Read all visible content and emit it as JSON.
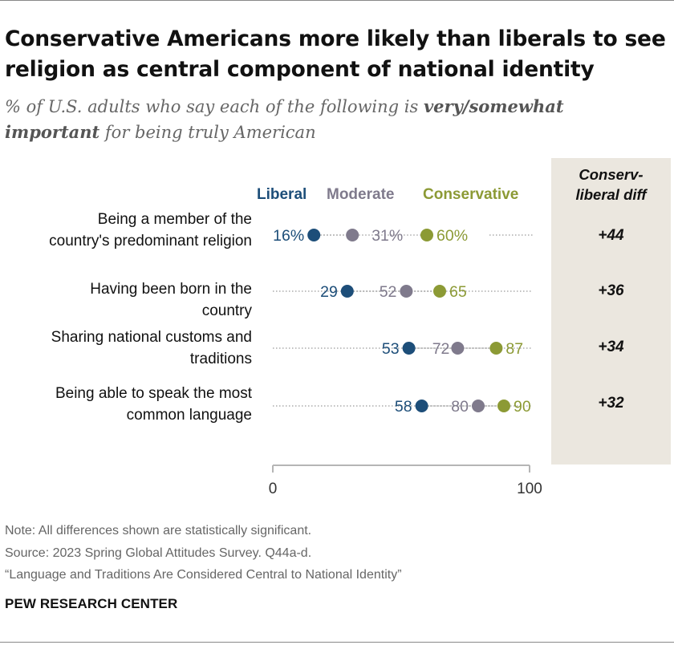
{
  "title": "Conservative Americans more likely than liberals to see religion as central component of national identity",
  "subtitle": {
    "pre": "% of U.S. adults who say each of the following is ",
    "bold": "very/somewhat important",
    "post": " for being truly American"
  },
  "diff_header": {
    "line1": "Conserv-",
    "line2": "liberal diff"
  },
  "colors": {
    "liberal": "#1d4e79",
    "moderate": "#7f7a8c",
    "conservative": "#8c9a35",
    "diff_bg": "#ebe7df"
  },
  "chart_data": {
    "type": "dot",
    "series": [
      {
        "name": "Liberal",
        "key": "liberal"
      },
      {
        "name": "Moderate",
        "key": "moderate"
      },
      {
        "name": "Conservative",
        "key": "conservative"
      }
    ],
    "categories": [
      {
        "label_lines": [
          "Being a member of the",
          "country's predominant religion"
        ],
        "liberal": 16,
        "moderate": 31,
        "conservative": 60,
        "labels": {
          "liberal": "16%",
          "moderate": "31%",
          "conservative": "60%"
        },
        "diff": "+44"
      },
      {
        "label_lines": [
          "Having been born in the",
          "country"
        ],
        "liberal": 29,
        "moderate": 52,
        "conservative": 65,
        "labels": {
          "liberal": "29",
          "moderate": "52",
          "conservative": "65"
        },
        "diff": "+36"
      },
      {
        "label_lines": [
          "Sharing national customs and",
          "traditions"
        ],
        "liberal": 53,
        "moderate": 72,
        "conservative": 87,
        "labels": {
          "liberal": "53",
          "moderate": "72",
          "conservative": "87"
        },
        "diff": "+34"
      },
      {
        "label_lines": [
          "Being able to speak the most",
          "common language"
        ],
        "liberal": 58,
        "moderate": 80,
        "conservative": 90,
        "labels": {
          "liberal": "58",
          "moderate": "80",
          "conservative": "90"
        },
        "diff": "+32"
      }
    ],
    "xlim": [
      0,
      100
    ],
    "x_ticks": [
      "0",
      "100"
    ]
  },
  "notes": {
    "note": "Note: All differences shown are statistically significant.",
    "source": "Source: 2023 Spring Global Attitudes Survey. Q44a-d.",
    "report": "“Language and Traditions Are Considered Central to National Identity”"
  },
  "brand": "PEW RESEARCH CENTER"
}
